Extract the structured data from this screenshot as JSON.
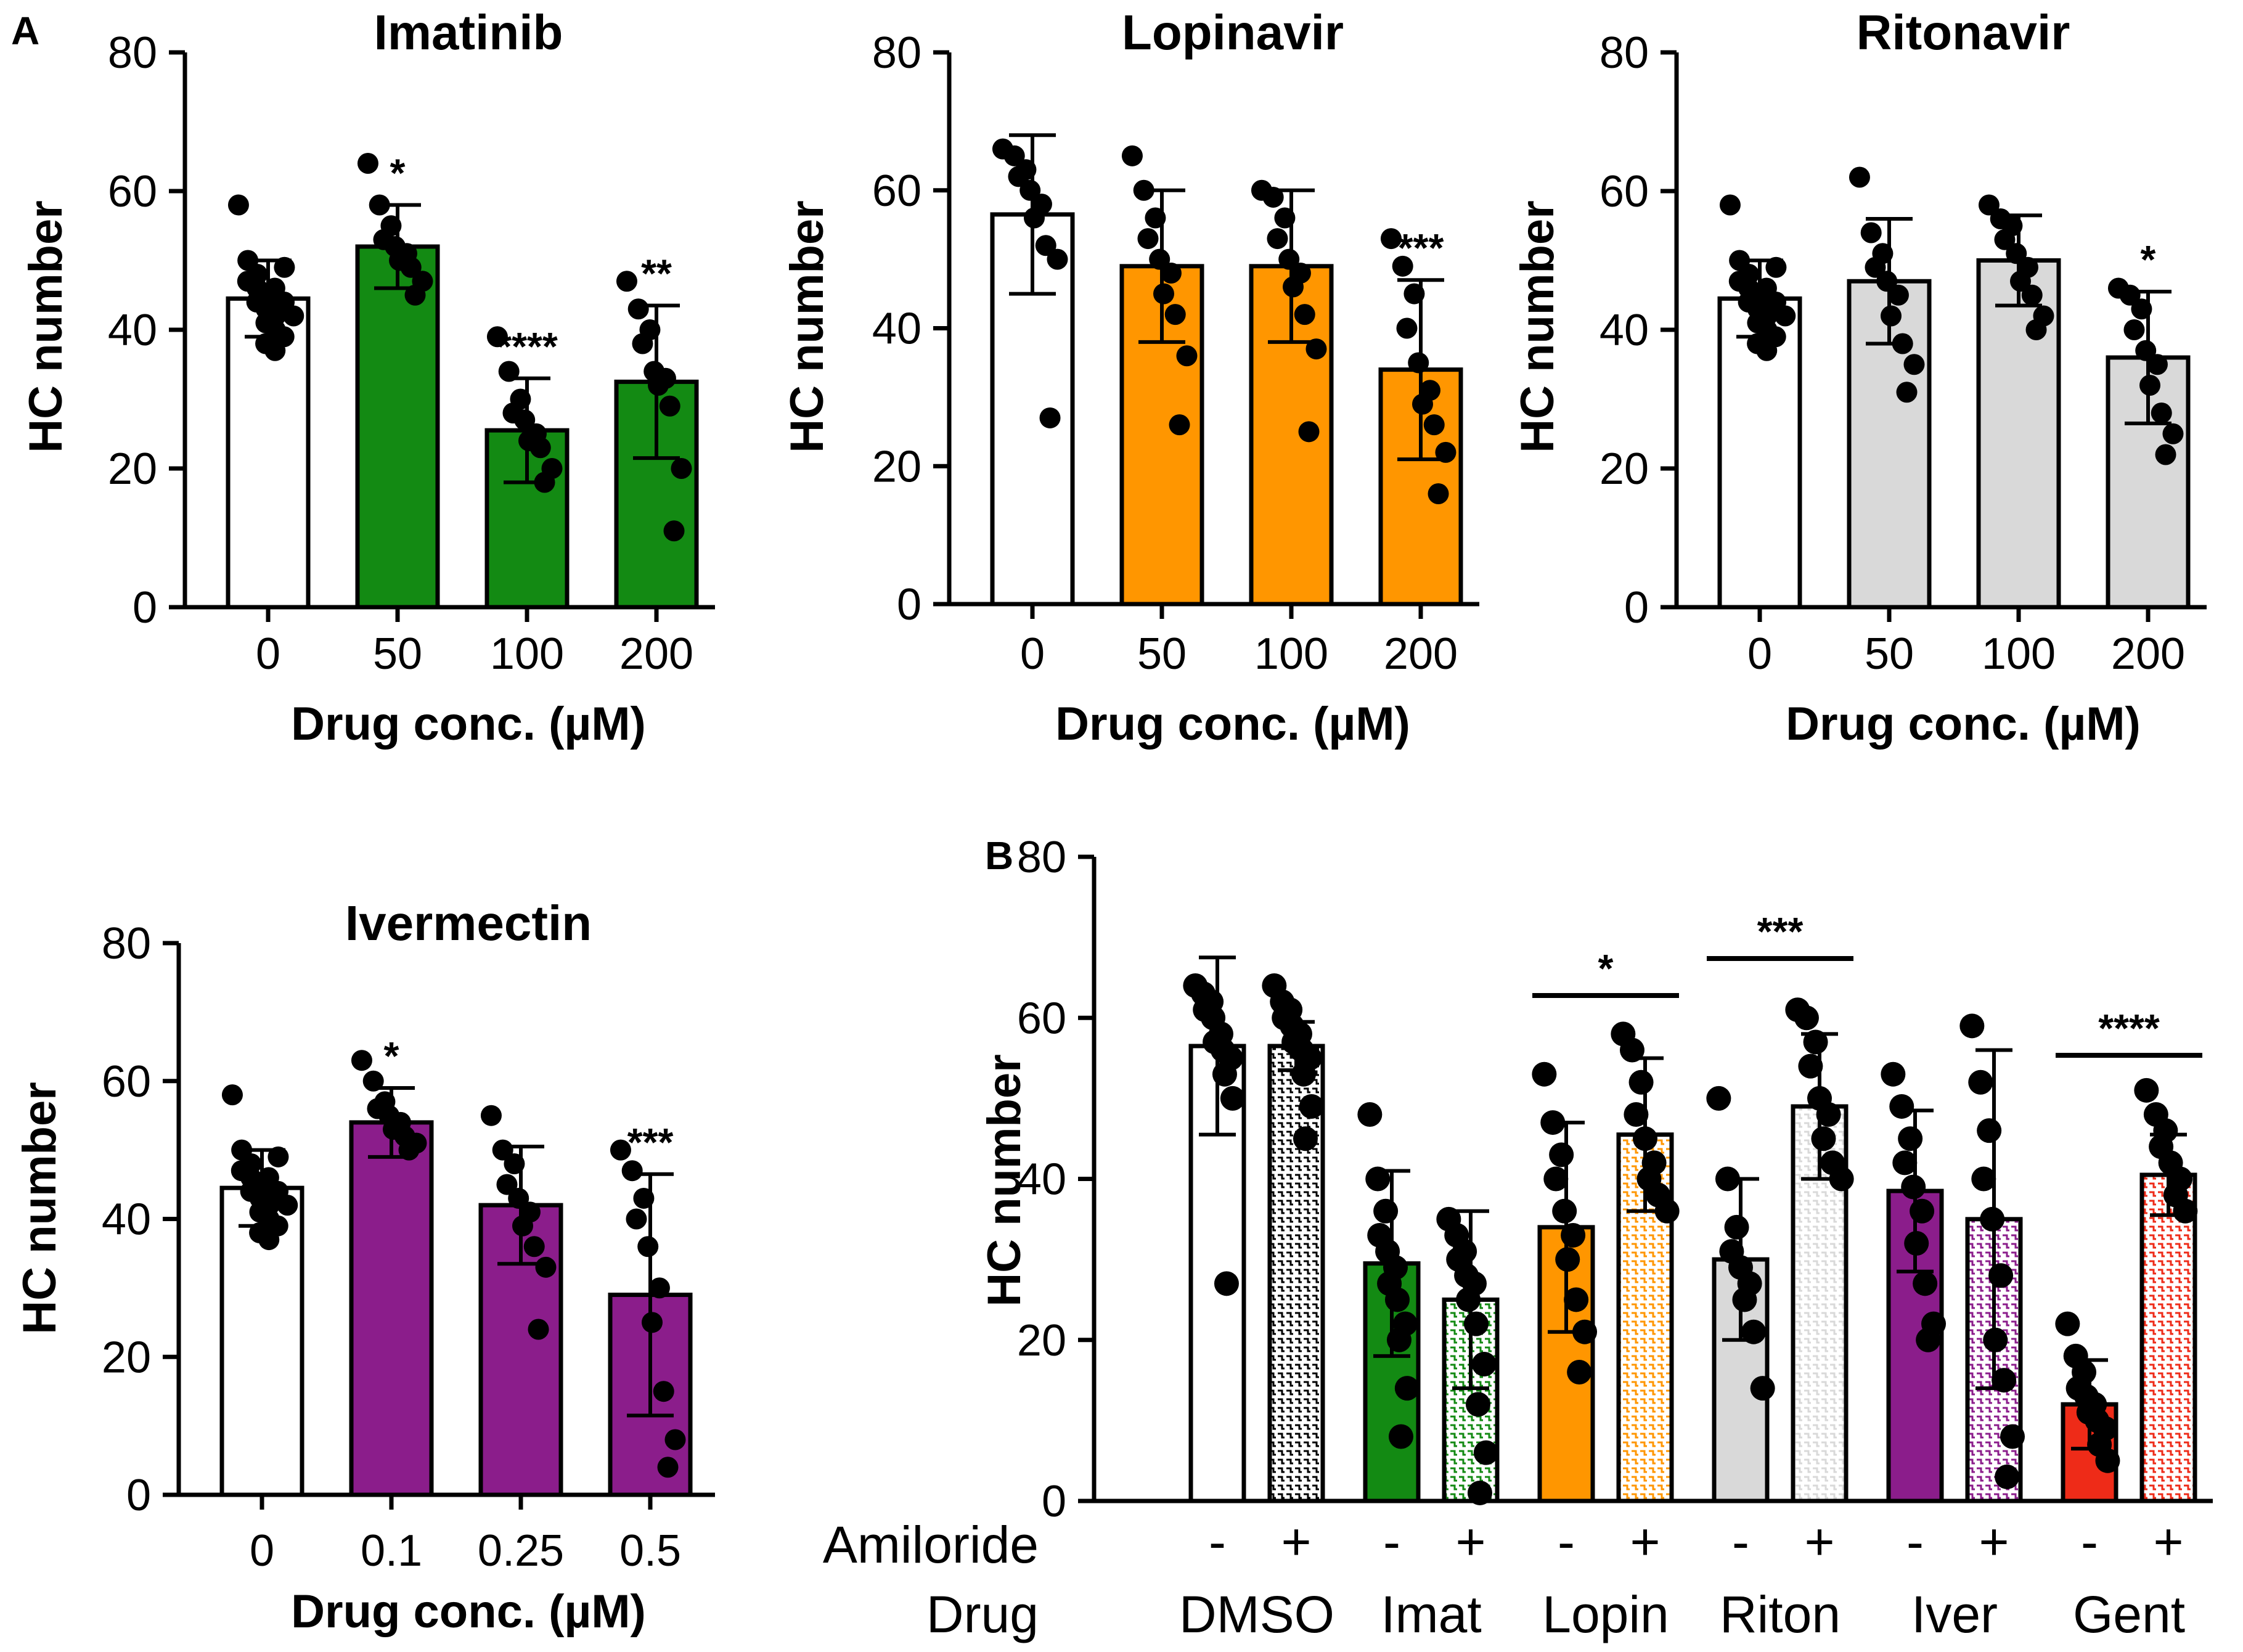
{
  "panel_labels": [
    "A",
    "B"
  ],
  "colors": {
    "white": "#ffffff",
    "green": "#138a13",
    "orange": "#ff9600",
    "grey": "#d9d9d9",
    "purple": "#8b1d8b",
    "red": "#ee2b18",
    "black": "#000000"
  },
  "chart_data": [
    {
      "type": "bar",
      "panel": "A",
      "title": "Imatinib",
      "xlabel": "Drug conc. (µM)",
      "ylabel": "HC number",
      "ylim": [
        0,
        80
      ],
      "yticks": [
        "0",
        "20",
        "40",
        "60",
        "80"
      ],
      "categories": [
        "0",
        "50",
        "100",
        "200"
      ],
      "values": [
        44.5,
        52,
        25.5,
        32.5
      ],
      "sd": [
        5.5,
        6,
        7.5,
        11
      ],
      "colors": [
        "#ffffff",
        "#138a13",
        "#138a13",
        "#138a13"
      ],
      "significance": [
        "",
        "*",
        "****",
        "**"
      ],
      "points": [
        [
          58,
          50,
          48,
          47,
          46,
          45,
          44,
          43,
          42,
          41,
          40,
          38,
          37,
          49,
          46,
          44,
          42,
          39
        ],
        [
          64,
          58,
          55,
          53,
          52,
          51,
          50,
          49,
          47,
          45
        ],
        [
          39,
          34,
          30,
          28,
          27,
          25,
          24,
          23,
          20,
          18
        ],
        [
          47,
          43,
          40,
          38,
          34,
          33,
          32,
          29,
          20,
          11
        ]
      ]
    },
    {
      "type": "bar",
      "title": "Lopinavir",
      "xlabel": "Drug conc. (µM)",
      "ylabel": "HC number",
      "ylim": [
        0,
        80
      ],
      "yticks": [
        "0",
        "20",
        "40",
        "60",
        "80"
      ],
      "categories": [
        "0",
        "50",
        "100",
        "200"
      ],
      "values": [
        56.5,
        49,
        49,
        34
      ],
      "sd": [
        11.5,
        11,
        11,
        13
      ],
      "colors": [
        "#ffffff",
        "#ff9600",
        "#ff9600",
        "#ff9600"
      ],
      "significance": [
        "",
        "",
        "",
        "***"
      ],
      "points": [
        [
          66,
          65,
          63,
          62,
          60,
          58,
          56,
          52,
          50,
          27
        ],
        [
          65,
          60,
          56,
          53,
          50,
          48,
          45,
          42,
          36,
          26
        ],
        [
          60,
          59,
          56,
          53,
          50,
          48,
          46,
          42,
          37,
          25
        ],
        [
          53,
          49,
          45,
          40,
          35,
          31,
          29,
          26,
          22,
          16
        ]
      ]
    },
    {
      "type": "bar",
      "title": "Ritonavir",
      "xlabel": "Drug conc. (µM)",
      "ylabel": "HC number",
      "ylim": [
        0,
        80
      ],
      "yticks": [
        "0",
        "20",
        "40",
        "60",
        "80"
      ],
      "categories": [
        "0",
        "50",
        "100",
        "200"
      ],
      "values": [
        44.5,
        47,
        50,
        36
      ],
      "sd": [
        5.5,
        9,
        6.5,
        9.5
      ],
      "colors": [
        "#ffffff",
        "#d9d9d9",
        "#d9d9d9",
        "#d9d9d9"
      ],
      "significance": [
        "",
        "",
        "",
        "*"
      ],
      "points": [
        [
          58,
          50,
          48,
          47,
          46,
          45,
          44,
          43,
          42,
          41,
          40,
          38,
          37,
          49,
          46,
          44,
          42,
          39
        ],
        [
          62,
          54,
          51,
          49,
          47,
          45,
          42,
          38,
          35,
          31
        ],
        [
          58,
          56,
          55,
          53,
          51,
          49,
          47,
          45,
          42,
          40
        ],
        [
          46,
          45,
          43,
          40,
          37,
          35,
          32,
          28,
          25,
          22
        ]
      ]
    },
    {
      "type": "bar",
      "title": "Ivermectin",
      "xlabel": "Drug conc. (µM)",
      "ylabel": "HC number",
      "ylim": [
        0,
        80
      ],
      "yticks": [
        "0",
        "20",
        "40",
        "60",
        "80"
      ],
      "categories": [
        "0",
        "0.1",
        "0.25",
        "0.5"
      ],
      "values": [
        44.5,
        54,
        42,
        29
      ],
      "sd": [
        5.5,
        5,
        8.5,
        17.5
      ],
      "colors": [
        "#ffffff",
        "#8b1d8b",
        "#8b1d8b",
        "#8b1d8b"
      ],
      "significance": [
        "",
        "*",
        "",
        "***"
      ],
      "points": [
        [
          58,
          50,
          48,
          47,
          46,
          45,
          44,
          43,
          42,
          41,
          40,
          38,
          37,
          49,
          46,
          44,
          42,
          39
        ],
        [
          63,
          60,
          57,
          56,
          55,
          54,
          53,
          52,
          51,
          50
        ],
        [
          55,
          50,
          48,
          45,
          43,
          41,
          39,
          36,
          33,
          24
        ],
        [
          50,
          47,
          43,
          40,
          36,
          30,
          25,
          15,
          8,
          4
        ]
      ]
    },
    {
      "type": "bar",
      "panel": "B",
      "title": "",
      "ylabel": "HC number",
      "ylim": [
        0,
        80
      ],
      "yticks": [
        "0",
        "20",
        "40",
        "60",
        "80"
      ],
      "row_labels": {
        "amiloride": "Amiloride",
        "drug": "Drug"
      },
      "amiloride": [
        "-",
        "+",
        "-",
        "+",
        "-",
        "+",
        "-",
        "+",
        "-",
        "+",
        "-",
        "+"
      ],
      "drug_groups": [
        "DMSO",
        "Imat",
        "Lopin",
        "Riton",
        "Iver",
        "Gent"
      ],
      "values": [
        56.5,
        56.5,
        29.5,
        25,
        34,
        45.5,
        30,
        49,
        38.5,
        35,
        12,
        40.5
      ],
      "sd": [
        11,
        3,
        11.5,
        11,
        13,
        9.5,
        10,
        9,
        10,
        21,
        5.5,
        5
      ],
      "colors": [
        "#ffffff",
        "#000000",
        "#138a13",
        "#138a13",
        "#ff9600",
        "#ff9600",
        "#d9d9d9",
        "#d9d9d9",
        "#8b1d8b",
        "#8b1d8b",
        "#ee2b18",
        "#ee2b18"
      ],
      "hatched": [
        false,
        true,
        false,
        true,
        false,
        true,
        false,
        true,
        false,
        true,
        false,
        true
      ],
      "significance": [
        {
          "pair": [
            4,
            5
          ],
          "label": "*"
        },
        {
          "pair": [
            6,
            7
          ],
          "label": "***"
        },
        {
          "pair": [
            10,
            11
          ],
          "label": "****"
        }
      ],
      "points": [
        [
          64,
          63,
          62,
          61,
          60,
          58,
          57,
          56,
          55,
          53,
          50,
          27
        ],
        [
          64,
          62,
          61,
          60,
          59,
          58,
          57,
          56,
          55,
          53,
          49,
          45
        ],
        [
          48,
          40,
          36,
          33,
          31,
          29,
          27,
          25,
          22,
          20,
          14,
          8
        ],
        [
          35,
          33,
          31,
          30,
          28,
          27,
          25,
          22,
          17,
          12,
          6,
          1
        ],
        [
          53,
          47,
          43,
          40,
          36,
          33,
          30,
          25,
          21,
          16
        ],
        [
          58,
          56,
          52,
          48,
          45,
          42,
          40,
          38,
          36
        ],
        [
          50,
          40,
          34,
          31,
          29,
          27,
          25,
          21,
          14
        ],
        [
          61,
          60,
          57,
          54,
          50,
          48,
          45,
          42,
          40
        ],
        [
          53,
          49,
          45,
          42,
          39,
          36,
          32,
          27,
          22,
          20
        ],
        [
          59,
          52,
          46,
          40,
          35,
          28,
          20,
          15,
          8,
          3
        ],
        [
          22,
          18,
          16,
          14,
          13,
          12,
          11,
          10,
          9,
          7,
          5
        ],
        [
          51,
          48,
          46,
          44,
          42,
          40,
          38,
          36
        ]
      ]
    }
  ]
}
